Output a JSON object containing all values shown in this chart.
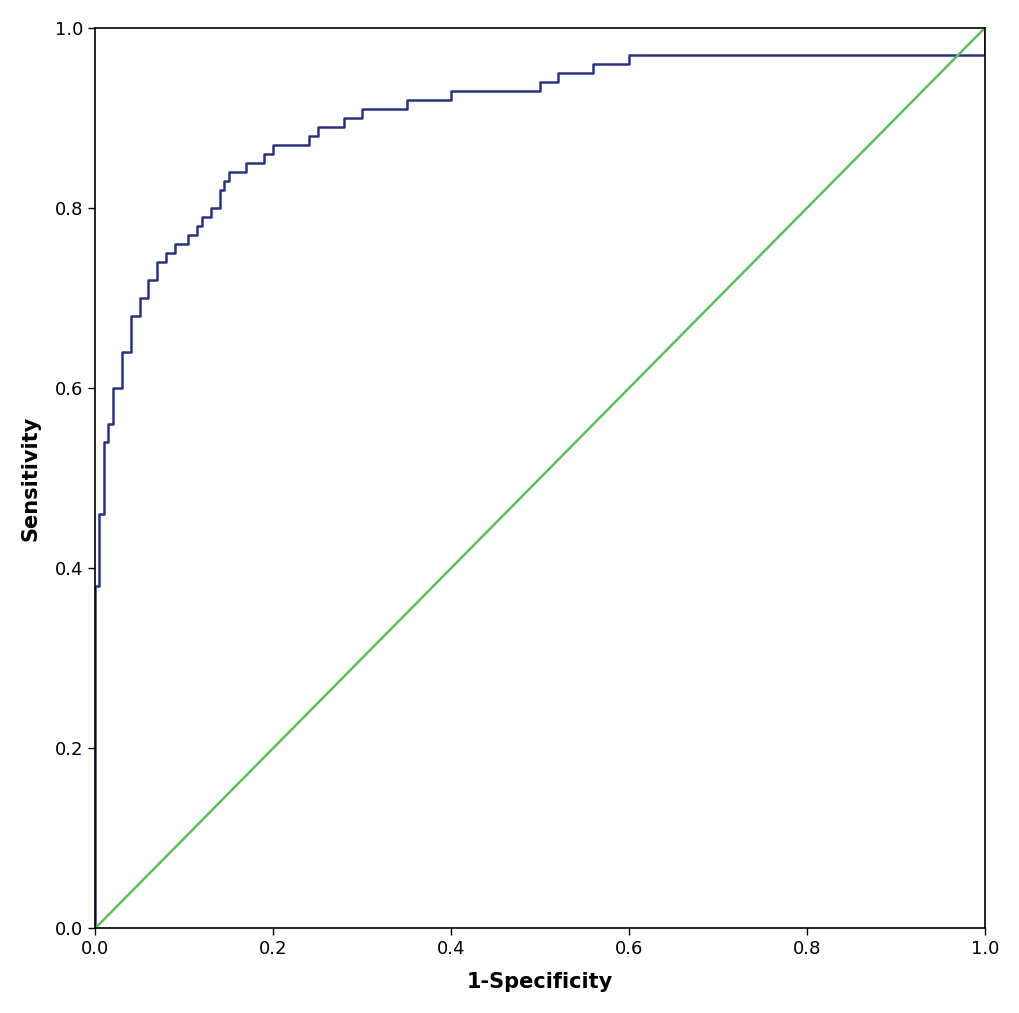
{
  "roc_fpr": [
    0.0,
    0.0,
    0.0,
    0.0,
    0.0,
    0.0,
    0.0,
    0.0,
    0.0,
    0.0,
    0.0,
    0.0,
    0.0,
    0.0,
    0.0,
    0.0,
    0.0,
    0.005,
    0.005,
    0.005,
    0.005,
    0.005,
    0.01,
    0.01,
    0.01,
    0.01,
    0.01,
    0.015,
    0.015,
    0.02,
    0.02,
    0.02,
    0.025,
    0.03,
    0.03,
    0.035,
    0.04,
    0.04,
    0.045,
    0.05,
    0.055,
    0.06,
    0.065,
    0.07,
    0.075,
    0.08,
    0.085,
    0.09,
    0.095,
    0.1,
    0.105,
    0.11,
    0.115,
    0.12,
    0.125,
    0.13,
    0.14,
    0.145,
    0.15,
    0.16,
    0.17,
    0.18,
    0.19,
    0.2,
    0.22,
    0.24,
    0.25,
    0.26,
    0.28,
    0.3,
    0.35,
    0.4,
    0.45,
    0.5,
    0.52,
    0.54,
    0.56,
    0.6,
    0.65,
    0.7,
    0.75,
    0.8,
    0.85,
    0.9,
    0.95,
    1.0
  ],
  "roc_tpr": [
    0.0,
    0.04,
    0.07,
    0.1,
    0.12,
    0.14,
    0.16,
    0.18,
    0.2,
    0.22,
    0.25,
    0.28,
    0.3,
    0.32,
    0.34,
    0.36,
    0.38,
    0.38,
    0.4,
    0.42,
    0.44,
    0.46,
    0.46,
    0.48,
    0.5,
    0.52,
    0.54,
    0.54,
    0.56,
    0.56,
    0.58,
    0.6,
    0.6,
    0.62,
    0.64,
    0.64,
    0.66,
    0.68,
    0.68,
    0.7,
    0.7,
    0.72,
    0.72,
    0.74,
    0.74,
    0.75,
    0.75,
    0.76,
    0.76,
    0.76,
    0.77,
    0.77,
    0.78,
    0.79,
    0.79,
    0.8,
    0.82,
    0.83,
    0.84,
    0.84,
    0.85,
    0.85,
    0.86,
    0.87,
    0.87,
    0.88,
    0.89,
    0.89,
    0.9,
    0.91,
    0.92,
    0.93,
    0.93,
    0.94,
    0.95,
    0.95,
    0.96,
    0.97,
    0.97,
    0.97,
    0.97,
    0.97,
    0.97,
    0.97,
    0.97,
    1.0
  ],
  "roc_color": "#2C3180",
  "diagonal_color": "#5CBF5C",
  "xlabel": "1-Specificity",
  "ylabel": "Sensitivity",
  "xlim": [
    0.0,
    1.0
  ],
  "ylim": [
    0.0,
    1.0
  ],
  "xticks": [
    0.0,
    0.2,
    0.4,
    0.6,
    0.8,
    1.0
  ],
  "yticks": [
    0.0,
    0.2,
    0.4,
    0.6,
    0.8,
    1.0
  ],
  "tick_label_fontsize": 13,
  "axis_label_fontsize": 15,
  "roc_linewidth": 1.8,
  "diagonal_linewidth": 1.8,
  "bg_color": "#FFFFFF",
  "plot_bg_color": "#FFFFFF",
  "spine_color": "#000000"
}
